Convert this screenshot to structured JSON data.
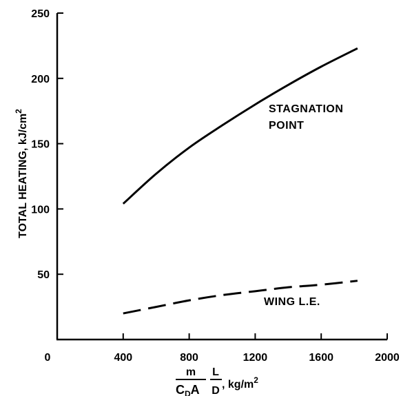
{
  "chart_data": {
    "type": "line",
    "ylabel": "TOTAL HEATING, kJ/cm",
    "ylabel_sup": "2",
    "xlabel": {
      "num_left": "m",
      "den_left_main": "C",
      "den_left_sub": "D",
      "den_left_tail": "A",
      "num_right": "L",
      "den_right": "D",
      "unit": ", kg/m",
      "unit_sup": "2"
    },
    "xlim": [
      0,
      2000
    ],
    "ylim": [
      0,
      250
    ],
    "x_ticks": [
      0,
      400,
      800,
      1200,
      1600,
      2000
    ],
    "x_tick_labels": [
      "0",
      "400",
      "800",
      "1200",
      "1600",
      "2000"
    ],
    "y_ticks": [
      50,
      100,
      150,
      200,
      250
    ],
    "y_tick_labels": [
      "50",
      "100",
      "150",
      "200",
      "250"
    ],
    "grid": false,
    "series": [
      {
        "name": "STAGNATION POINT",
        "name_lines": [
          "STAGNATION",
          "POINT"
        ],
        "style": "solid",
        "x": [
          400,
          600,
          800,
          1000,
          1200,
          1400,
          1600,
          1820
        ],
        "y": [
          104,
          127,
          147,
          164,
          180,
          195,
          209,
          223
        ]
      },
      {
        "name": "WING L.E.",
        "name_lines": [
          "WING L.E."
        ],
        "style": "dashed",
        "x": [
          400,
          600,
          800,
          1000,
          1200,
          1400,
          1600,
          1820
        ],
        "y": [
          20,
          25,
          30,
          34,
          37,
          40,
          42,
          45
        ]
      }
    ]
  }
}
